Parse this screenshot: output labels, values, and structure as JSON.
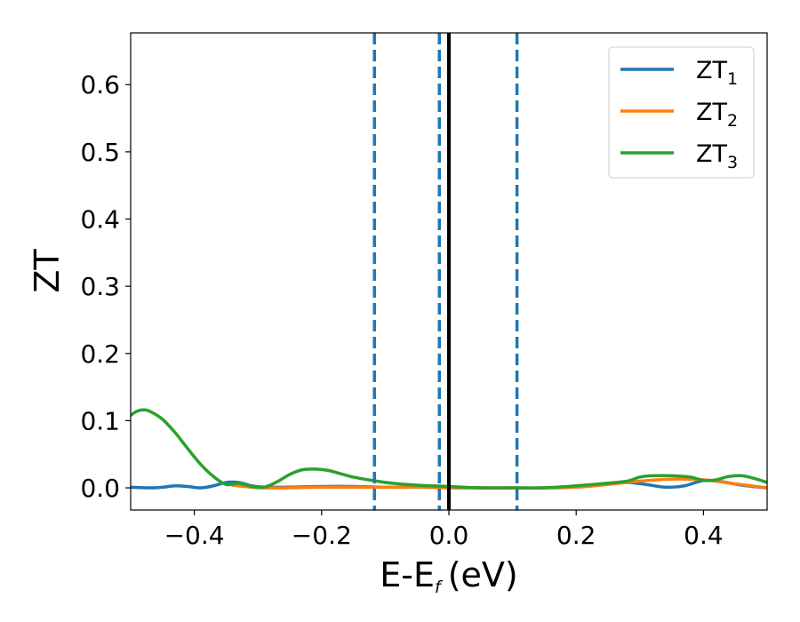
{
  "chart_data": {
    "type": "line",
    "xlabel": "E-E",
    "xlabel_subscript": "f",
    "xlabel_unit": "(eV)",
    "ylabel": "ZT",
    "xlim": [
      -0.5,
      0.5
    ],
    "ylim": [
      -0.033,
      0.677
    ],
    "xticks": [
      -0.4,
      -0.2,
      0.0,
      0.2,
      0.4
    ],
    "xtick_labels": [
      "−0.4",
      "−0.2",
      "0.0",
      "0.2",
      "0.4"
    ],
    "yticks": [
      0.0,
      0.1,
      0.2,
      0.3,
      0.4,
      0.5,
      0.6
    ],
    "ytick_labels": [
      "0.0",
      "0.1",
      "0.2",
      "0.3",
      "0.4",
      "0.5",
      "0.6"
    ],
    "grid": false,
    "legend_position": "top-right",
    "vertical_lines": [
      {
        "x": -0.117,
        "style": "dashed",
        "color": "#1f77b4"
      },
      {
        "x": -0.015,
        "style": "dashed",
        "color": "#1f77b4"
      },
      {
        "x": 0.0,
        "style": "solid",
        "color": "#000000"
      },
      {
        "x": 0.107,
        "style": "dashed",
        "color": "#1f77b4"
      }
    ],
    "series": [
      {
        "name": "ZT",
        "name_subscript": "1",
        "color": "#1f77b4",
        "x": [
          -0.5,
          -0.47,
          -0.45,
          -0.43,
          -0.41,
          -0.39,
          -0.37,
          -0.35,
          -0.33,
          -0.31,
          -0.29,
          -0.25,
          -0.2,
          -0.15,
          -0.1,
          -0.05,
          0.0,
          0.05,
          0.1,
          0.15,
          0.2,
          0.25,
          0.28,
          0.31,
          0.34,
          0.37,
          0.4,
          0.43,
          0.46,
          0.5
        ],
        "y": [
          0.001,
          0.0,
          0.001,
          0.003,
          0.002,
          0.0,
          0.003,
          0.008,
          0.008,
          0.003,
          0.001,
          0.001,
          0.002,
          0.002,
          0.001,
          0.001,
          0.001,
          0.0,
          0.0,
          0.0,
          0.002,
          0.006,
          0.008,
          0.005,
          0.001,
          0.003,
          0.011,
          0.009,
          0.004,
          0.0
        ]
      },
      {
        "name": "ZT",
        "name_subscript": "2",
        "color": "#ff7f0e",
        "x": [
          -0.34,
          -0.31,
          -0.29,
          -0.25,
          -0.2,
          -0.15,
          -0.1,
          -0.05,
          0.0,
          0.05,
          0.1,
          0.15,
          0.2,
          0.25,
          0.3,
          0.35,
          0.4,
          0.45,
          0.5
        ],
        "y": [
          0.004,
          0.001,
          0.0,
          0.0,
          0.001,
          0.001,
          0.001,
          0.001,
          0.0,
          0.0,
          0.0,
          0.0,
          0.001,
          0.005,
          0.01,
          0.013,
          0.012,
          0.006,
          0.0
        ]
      },
      {
        "name": "ZT",
        "name_subscript": "3",
        "color": "#2ca02c",
        "x": [
          -0.5,
          -0.49,
          -0.48,
          -0.47,
          -0.45,
          -0.43,
          -0.41,
          -0.39,
          -0.37,
          -0.35,
          -0.33,
          -0.31,
          -0.29,
          -0.27,
          -0.25,
          -0.23,
          -0.21,
          -0.19,
          -0.17,
          -0.15,
          -0.12,
          -0.09,
          -0.05,
          0.0,
          0.05,
          0.1,
          0.15,
          0.2,
          0.25,
          0.28,
          0.3,
          0.32,
          0.35,
          0.38,
          0.4,
          0.42,
          0.44,
          0.46,
          0.48,
          0.5
        ],
        "y": [
          0.108,
          0.114,
          0.116,
          0.114,
          0.102,
          0.082,
          0.058,
          0.035,
          0.017,
          0.005,
          0.007,
          0.002,
          0.001,
          0.009,
          0.02,
          0.027,
          0.028,
          0.026,
          0.021,
          0.016,
          0.011,
          0.007,
          0.004,
          0.002,
          0.0,
          0.0,
          0.0,
          0.003,
          0.007,
          0.01,
          0.016,
          0.018,
          0.018,
          0.016,
          0.011,
          0.012,
          0.017,
          0.018,
          0.014,
          0.008
        ]
      }
    ]
  }
}
